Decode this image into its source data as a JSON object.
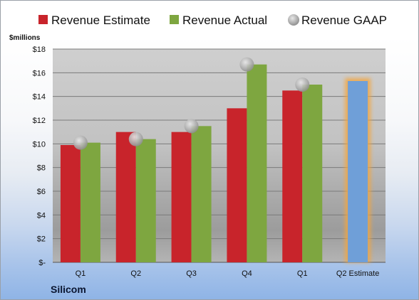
{
  "company": "Silicom",
  "colors": {
    "estimate": "#c8242b",
    "actual": "#7ea640",
    "gaap": "#a8a8a8",
    "forecast": "#6f9fd8",
    "forecast_glow": "#f2a640"
  },
  "chart_data": {
    "type": "bar",
    "unit_label": "$millions",
    "categories": [
      "Q1",
      "Q2",
      "Q3",
      "Q4",
      "Q1",
      "Q2 Estimate"
    ],
    "ylim": [
      0,
      18
    ],
    "yticks": [
      "$-",
      "$2",
      "$4",
      "$6",
      "$8",
      "$10",
      "$12",
      "$14",
      "$16",
      "$18"
    ],
    "grid": true,
    "legend_position": "top",
    "series": [
      {
        "name": "Revenue Estimate",
        "kind": "bar",
        "values": [
          9.9,
          11.0,
          11.0,
          13.0,
          14.5,
          15.3
        ]
      },
      {
        "name": "Revenue Actual",
        "kind": "bar",
        "values": [
          10.1,
          10.4,
          11.5,
          16.7,
          15.0,
          null
        ]
      },
      {
        "name": "Revenue GAAP",
        "kind": "marker",
        "values": [
          10.1,
          10.4,
          11.5,
          16.7,
          15.0,
          null
        ]
      }
    ]
  }
}
